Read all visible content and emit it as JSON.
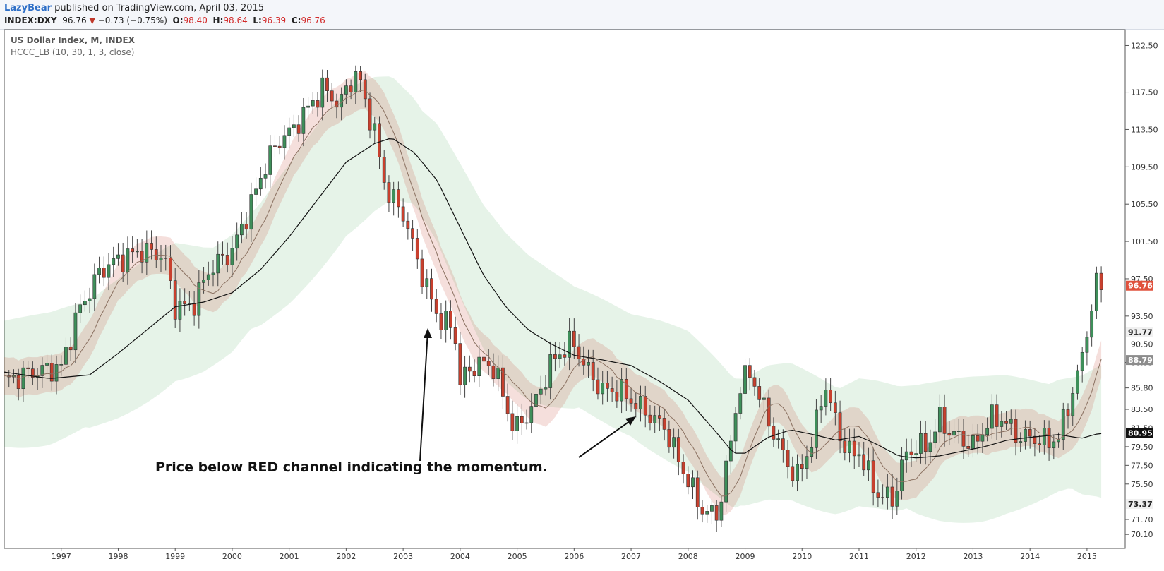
{
  "header": {
    "author": "LazyBear",
    "published_text": "published on TradingView.com, April 03, 2015",
    "symbol": "INDEX:DXY",
    "last": "96.76",
    "change": "−0.73 (−0.75%)",
    "o_label": "O:",
    "o_value": "98.40",
    "h_label": "H:",
    "h_value": "98.64",
    "l_label": "L:",
    "l_value": "96.39",
    "c_label": "C:",
    "c_value": "96.76",
    "down_icon": "triangle-down-icon"
  },
  "chart": {
    "title": "US Dollar Index, M, INDEX",
    "indicator": "HCCC_LB (10, 30, 1, 3, close)",
    "annotation": "Price below RED channel indicating the momentum."
  },
  "chart_data": {
    "type": "candlestick",
    "interval": "monthly",
    "x_range": [
      1996.0,
      2015.67
    ],
    "ylim": [
      68.6,
      124.2
    ],
    "x_ticks": [
      "1997",
      "1998",
      "1999",
      "2000",
      "2001",
      "2002",
      "2003",
      "2004",
      "2005",
      "2006",
      "2007",
      "2008",
      "2009",
      "2010",
      "2011",
      "2012",
      "2013",
      "2014",
      "2015"
    ],
    "y_ticks": [
      "122.50",
      "117.50",
      "113.50",
      "109.50",
      "105.50",
      "101.50",
      "97.50",
      "93.50",
      "90.50",
      "88.53",
      "85.80",
      "83.50",
      "81.50",
      "79.50",
      "77.50",
      "75.50",
      "71.70",
      "70.10"
    ],
    "price_labels": [
      {
        "value": 96.76,
        "text": "96.76",
        "color": "#e0513c"
      },
      {
        "value": 91.77,
        "text": "91.77",
        "color": "#f0f0f0"
      },
      {
        "value": 88.79,
        "text": "88.79",
        "color": "#8c8c8c"
      },
      {
        "value": 80.95,
        "text": "80.95",
        "color": "#111111"
      },
      {
        "value": 73.37,
        "text": "73.37",
        "color": "#f0f0f0"
      }
    ],
    "close_anchors": [
      [
        1996.0,
        86.5
      ],
      [
        1996.5,
        87.5
      ],
      [
        1997.0,
        88.0
      ],
      [
        1997.3,
        94.0
      ],
      [
        1997.7,
        98.5
      ],
      [
        1998.0,
        99.5
      ],
      [
        1998.4,
        100.5
      ],
      [
        1998.8,
        100.0
      ],
      [
        1999.0,
        94.5
      ],
      [
        1999.3,
        94.5
      ],
      [
        1999.6,
        98.5
      ],
      [
        2000.0,
        100.5
      ],
      [
        2000.3,
        105.0
      ],
      [
        2000.6,
        110.0
      ],
      [
        2000.9,
        113.0
      ],
      [
        2001.0,
        113.0
      ],
      [
        2001.3,
        115.5
      ],
      [
        2001.6,
        118.0
      ],
      [
        2001.9,
        116.0
      ],
      [
        2002.0,
        118.0
      ],
      [
        2002.2,
        119.5
      ],
      [
        2002.5,
        113.0
      ],
      [
        2002.7,
        107.0
      ],
      [
        2003.0,
        104.5
      ],
      [
        2003.3,
        98.5
      ],
      [
        2003.6,
        93.5
      ],
      [
        2003.9,
        92.0
      ],
      [
        2004.0,
        86.5
      ],
      [
        2004.3,
        88.5
      ],
      [
        2004.6,
        88.0
      ],
      [
        2004.9,
        82.0
      ],
      [
        2005.0,
        81.5
      ],
      [
        2005.3,
        84.0
      ],
      [
        2005.6,
        88.5
      ],
      [
        2005.9,
        90.5
      ],
      [
        2006.0,
        90.5
      ],
      [
        2006.2,
        88.0
      ],
      [
        2006.5,
        85.5
      ],
      [
        2006.8,
        85.5
      ],
      [
        2007.0,
        84.5
      ],
      [
        2007.3,
        83.0
      ],
      [
        2007.6,
        81.5
      ],
      [
        2007.9,
        77.0
      ],
      [
        2008.0,
        76.0
      ],
      [
        2008.2,
        73.0
      ],
      [
        2008.5,
        72.0
      ],
      [
        2008.7,
        78.0
      ],
      [
        2008.9,
        86.0
      ],
      [
        2009.1,
        87.5
      ],
      [
        2009.3,
        84.0
      ],
      [
        2009.6,
        79.5
      ],
      [
        2009.9,
        76.0
      ],
      [
        2010.0,
        77.5
      ],
      [
        2010.2,
        80.5
      ],
      [
        2010.4,
        86.5
      ],
      [
        2010.5,
        84.0
      ],
      [
        2010.7,
        80.0
      ],
      [
        2010.9,
        78.5
      ],
      [
        2011.0,
        79.0
      ],
      [
        2011.3,
        74.5
      ],
      [
        2011.6,
        73.8
      ],
      [
        2011.8,
        78.5
      ],
      [
        2012.0,
        79.5
      ],
      [
        2012.2,
        79.5
      ],
      [
        2012.4,
        82.5
      ],
      [
        2012.6,
        81.0
      ],
      [
        2012.9,
        80.0
      ],
      [
        2013.0,
        79.5
      ],
      [
        2013.3,
        82.5
      ],
      [
        2013.5,
        82.5
      ],
      [
        2013.8,
        80.5
      ],
      [
        2014.0,
        80.5
      ],
      [
        2014.3,
        80.0
      ],
      [
        2014.5,
        80.5
      ],
      [
        2014.7,
        84.5
      ],
      [
        2014.9,
        88.5
      ],
      [
        2015.0,
        92.0
      ],
      [
        2015.1,
        95.0
      ],
      [
        2015.2,
        97.8
      ],
      [
        2015.25,
        96.76
      ]
    ],
    "slow_line_anchors": [
      [
        1996.0,
        87.5
      ],
      [
        1996.8,
        86.8
      ],
      [
        1997.5,
        87.2
      ],
      [
        1998.0,
        89.5
      ],
      [
        1998.5,
        92.0
      ],
      [
        1999.0,
        94.5
      ],
      [
        1999.5,
        95.0
      ],
      [
        2000.0,
        96.0
      ],
      [
        2000.5,
        98.5
      ],
      [
        2001.0,
        102.0
      ],
      [
        2001.5,
        106.0
      ],
      [
        2002.0,
        110.0
      ],
      [
        2002.5,
        112.0
      ],
      [
        2002.8,
        112.6
      ],
      [
        2003.2,
        111.0
      ],
      [
        2003.6,
        108.0
      ],
      [
        2004.0,
        103.0
      ],
      [
        2004.4,
        98.0
      ],
      [
        2004.8,
        94.5
      ],
      [
        2005.2,
        92.0
      ],
      [
        2005.6,
        90.5
      ],
      [
        2006.0,
        89.3
      ],
      [
        2006.5,
        88.8
      ],
      [
        2007.0,
        88.2
      ],
      [
        2007.5,
        86.5
      ],
      [
        2008.0,
        84.5
      ],
      [
        2008.5,
        81.0
      ],
      [
        2008.8,
        78.8
      ],
      [
        2009.0,
        78.8
      ],
      [
        2009.4,
        80.5
      ],
      [
        2009.8,
        81.3
      ],
      [
        2010.2,
        80.8
      ],
      [
        2010.6,
        80.2
      ],
      [
        2011.0,
        80.6
      ],
      [
        2011.3,
        79.8
      ],
      [
        2011.7,
        78.5
      ],
      [
        2012.0,
        78.3
      ],
      [
        2012.4,
        78.5
      ],
      [
        2012.8,
        79.0
      ],
      [
        2013.2,
        79.5
      ],
      [
        2013.6,
        80.2
      ],
      [
        2014.0,
        80.5
      ],
      [
        2014.5,
        80.8
      ],
      [
        2014.9,
        80.4
      ],
      [
        2015.2,
        80.9
      ]
    ],
    "outer_band_halfwidth": 5.5,
    "inner_band_halfwidth": 2.0
  }
}
